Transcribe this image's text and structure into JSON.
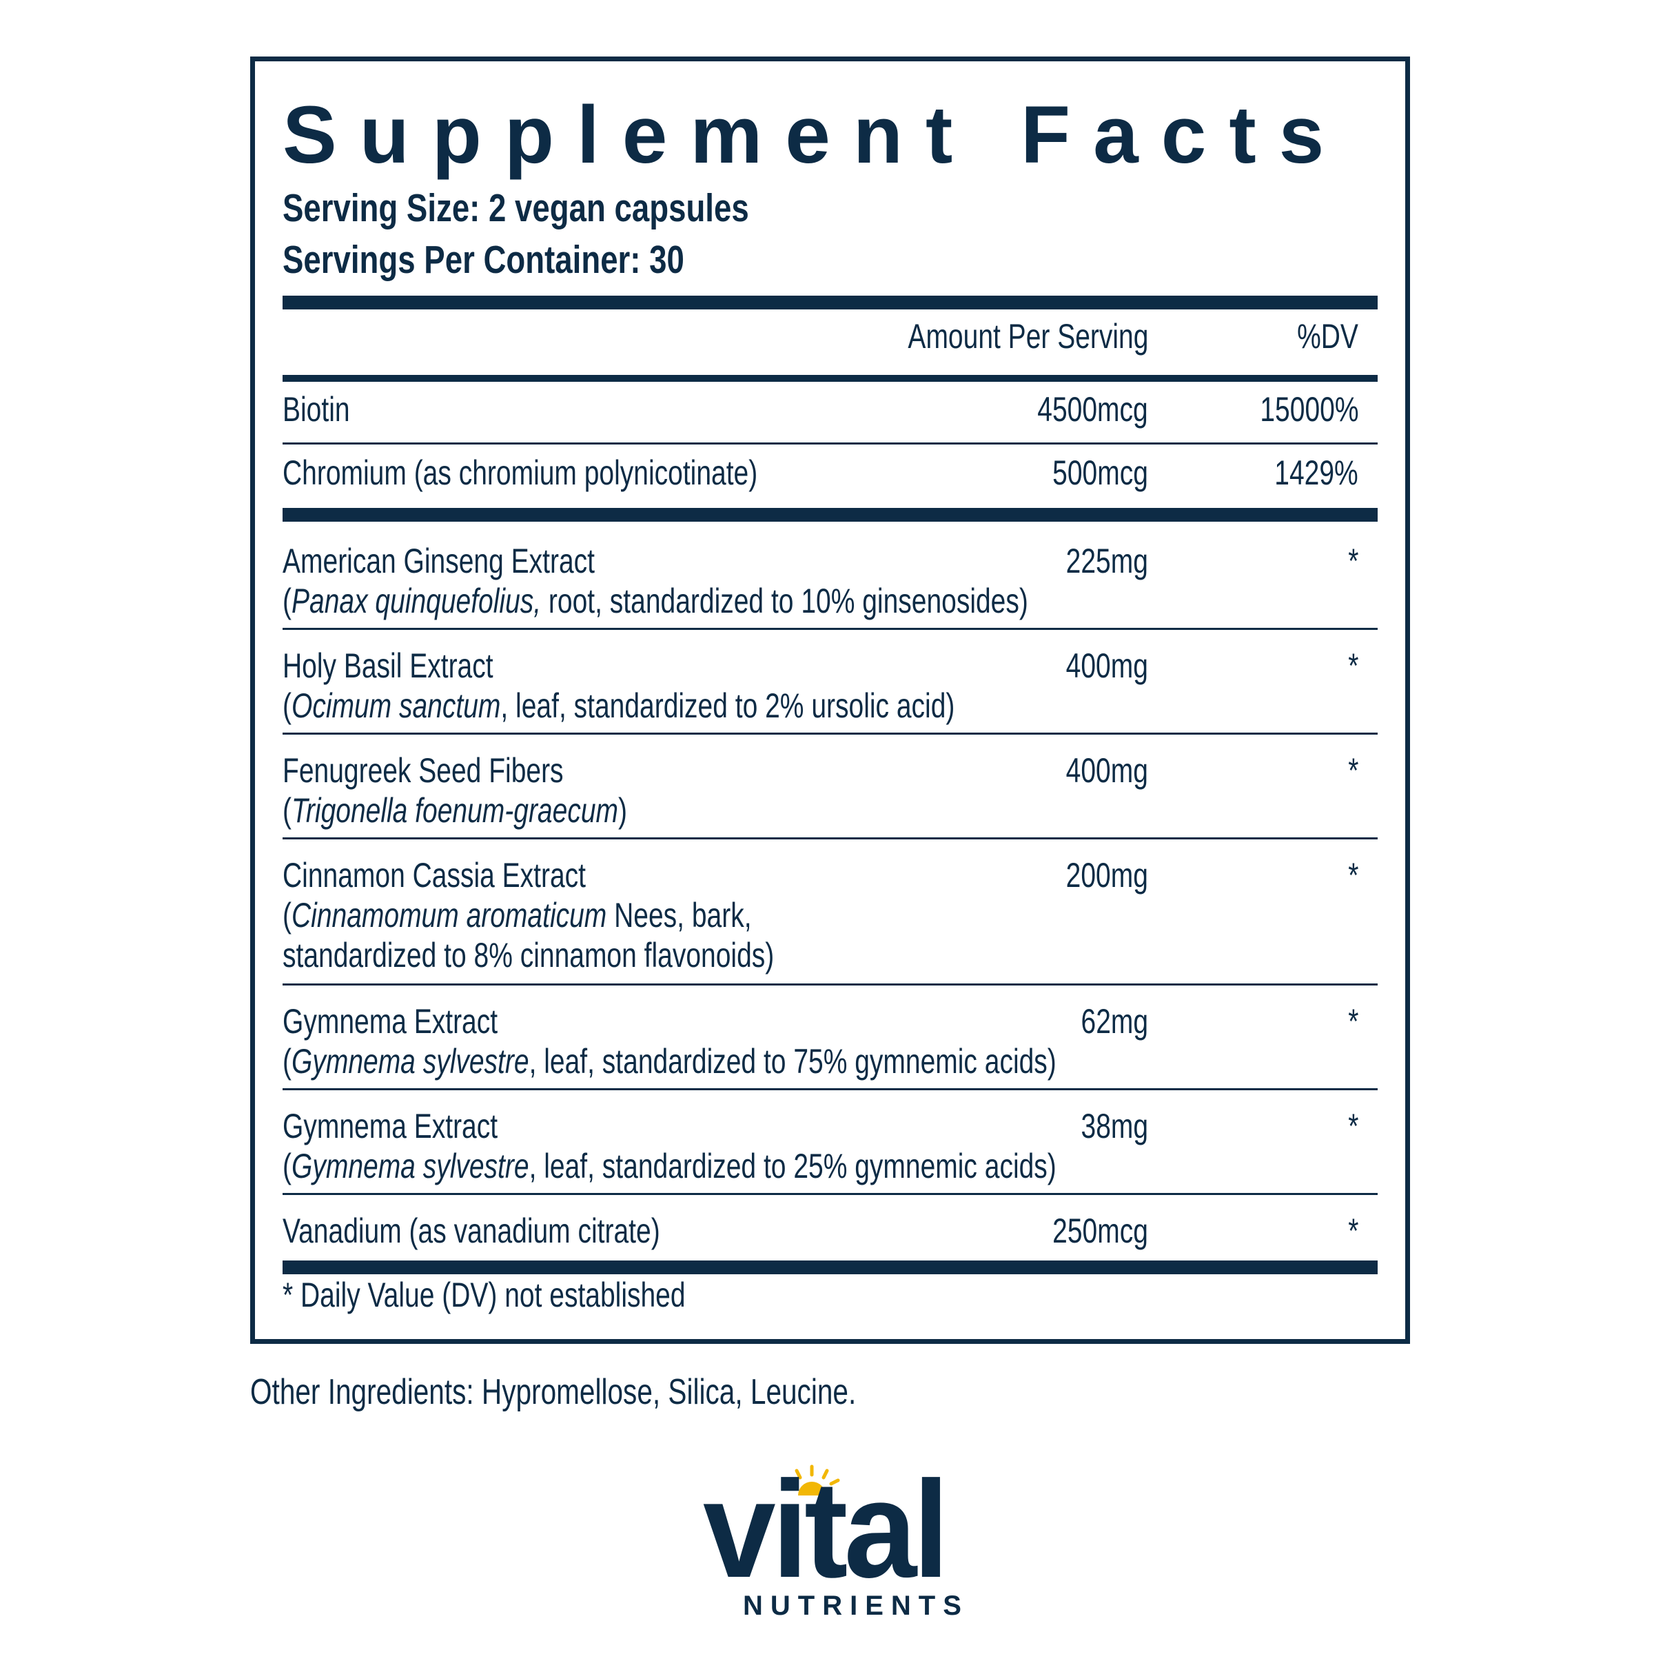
{
  "panel": {
    "title": "Supplement Facts",
    "serving_size": "Serving Size: 2 vegan capsules",
    "servings_per_container": "Servings Per Container: 30",
    "header_amount": "Amount Per Serving",
    "header_dv": "%DV",
    "vitamins": [
      {
        "name": "Biotin",
        "amount": "4500mcg",
        "dv": "15000%"
      },
      {
        "name": "Chromium (as chromium polynicotinate)",
        "amount": "500mcg",
        "dv": "1429%"
      }
    ],
    "others": [
      {
        "name": "American Ginseng Extract",
        "sub1_open": "(",
        "sub1_italic": "Panax quinquefolius,",
        "sub1_rest": " root, standardized to 10% ginsenosides)",
        "amount": "225mg",
        "dv": "*"
      },
      {
        "name": "Holy Basil Extract",
        "sub1_open": "(",
        "sub1_italic": "Ocimum sanctum",
        "sub1_rest": ", leaf, standardized to 2% ursolic acid)",
        "amount": "400mg",
        "dv": "*"
      },
      {
        "name": "Fenugreek Seed Fibers",
        "sub1_open": "(",
        "sub1_italic": "Trigonella foenum-graecum",
        "sub1_rest": ")",
        "amount": "400mg",
        "dv": "*"
      },
      {
        "name": "Cinnamon Cassia Extract",
        "sub1_open": "(",
        "sub1_italic": "Cinnamomum aromaticum",
        "sub1_rest": " Nees, bark,",
        "sub2": "standardized to 8% cinnamon flavonoids)",
        "amount": "200mg",
        "dv": "*"
      },
      {
        "name": "Gymnema Extract",
        "sub1_open": "(",
        "sub1_italic": "Gymnema sylvestre",
        "sub1_rest": ", leaf, standardized to 75% gymnemic acids)",
        "amount": "62mg",
        "dv": "*"
      },
      {
        "name": "Gymnema Extract",
        "sub1_open": "(",
        "sub1_italic": "Gymnema sylvestre",
        "sub1_rest": ", leaf, standardized to 25% gymnemic acids)",
        "amount": "38mg",
        "dv": "*"
      },
      {
        "name": "Vanadium (as vanadium citrate)",
        "amount": "250mcg",
        "dv": "*"
      }
    ],
    "footnote": "* Daily Value (DV) not established"
  },
  "other_ingredients": "Other Ingredients: Hypromellose, Silica, Leucine.",
  "logo": {
    "word": "vital",
    "sub": "NUTRIENTS",
    "accent": "#f2b705",
    "color": "#0d2b45"
  }
}
